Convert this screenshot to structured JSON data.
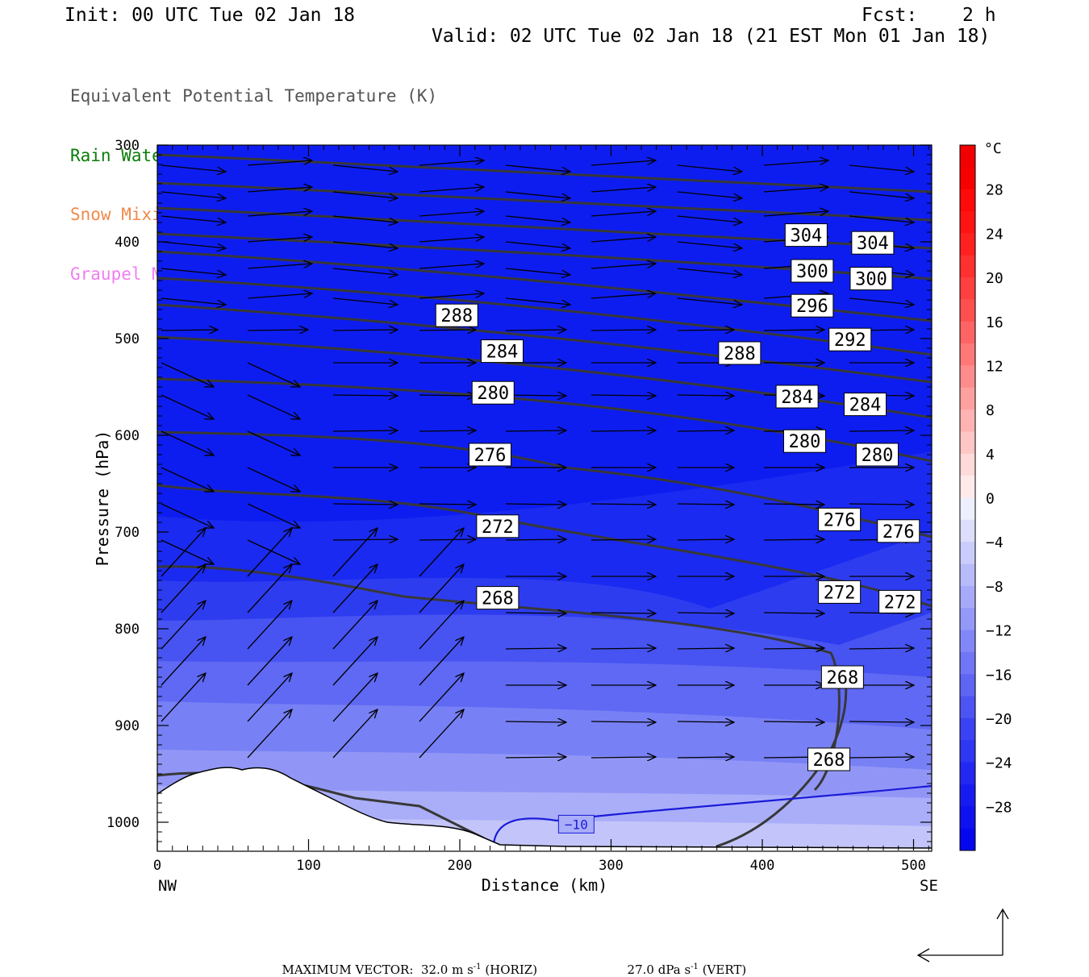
{
  "header": {
    "init": "Init: 00 UTC Tue 02 Jan 18",
    "fcst_label": "Fcst:",
    "fcst_value": "2 h",
    "valid": "Valid: 02 UTC Tue 02 Jan 18 (21 EST Mon 01 Jan 18)"
  },
  "fields": [
    {
      "label": "Equivalent Potential Temperature (K)",
      "color": "#555555"
    },
    {
      "label": "Rain Water Mixing Ratio (g/kg)",
      "color": "#0a7d0a"
    },
    {
      "label": "Snow Mixing Ratio (g/kg)",
      "color": "#f08a4b"
    },
    {
      "label": "Graupel Mixing Ratio (g/kg)",
      "color": "#f07ef0"
    }
  ],
  "chart_data": {
    "type": "cross-section",
    "xlabel": "Distance (km)",
    "ylabel": "Pressure (hPa)",
    "xlim": [
      0,
      512
    ],
    "ylim": [
      1030,
      300
    ],
    "x_ticks": [
      0,
      100,
      200,
      300,
      400,
      500
    ],
    "y_ticks": [
      300,
      400,
      500,
      600,
      700,
      800,
      900,
      1000
    ],
    "x_end_labels": {
      "left": "NW",
      "right": "SE"
    },
    "colorbar": {
      "unit": "°C",
      "ticks": [
        28,
        24,
        20,
        16,
        12,
        8,
        4,
        0,
        -4,
        -8,
        -12,
        -16,
        -20,
        -24,
        -28
      ],
      "tick_labels": [
        "28",
        "24",
        "20",
        "16",
        "12",
        "8",
        "4",
        "0",
        "−4",
        "−8",
        "−12",
        "−16",
        "−20",
        "−24",
        "−28"
      ],
      "min": -32,
      "max": 32,
      "step": 2
    },
    "theta_e_labels": [
      {
        "text": "304",
        "x": 429,
        "p": 393
      },
      {
        "text": "304",
        "x": 473,
        "p": 401
      },
      {
        "text": "300",
        "x": 433,
        "p": 430
      },
      {
        "text": "300",
        "x": 472,
        "p": 438
      },
      {
        "text": "296",
        "x": 433,
        "p": 466
      },
      {
        "text": "292",
        "x": 458,
        "p": 501
      },
      {
        "text": "288",
        "x": 198,
        "p": 476
      },
      {
        "text": "288",
        "x": 385,
        "p": 515
      },
      {
        "text": "284",
        "x": 228,
        "p": 513
      },
      {
        "text": "284",
        "x": 423,
        "p": 560
      },
      {
        "text": "284",
        "x": 468,
        "p": 568
      },
      {
        "text": "280",
        "x": 222,
        "p": 556
      },
      {
        "text": "280",
        "x": 428,
        "p": 606
      },
      {
        "text": "280",
        "x": 476,
        "p": 620
      },
      {
        "text": "276",
        "x": 220,
        "p": 620
      },
      {
        "text": "276",
        "x": 451,
        "p": 687
      },
      {
        "text": "276",
        "x": 490,
        "p": 699
      },
      {
        "text": "272",
        "x": 225,
        "p": 694
      },
      {
        "text": "272",
        "x": 451,
        "p": 762
      },
      {
        "text": "272",
        "x": 491,
        "p": 772
      },
      {
        "text": "268",
        "x": 225,
        "p": 768
      },
      {
        "text": "268",
        "x": 453,
        "p": 850
      },
      {
        "text": "268",
        "x": 444,
        "p": 935
      }
    ],
    "isotherm_label": {
      "text": "−10",
      "x": 277,
      "p": 1002
    },
    "max_vector": {
      "label": "MAXIMUM VECTOR:",
      "horiz_value": "32.0 m s",
      "horiz_exp": "-1",
      "horiz_unit": "(HORIZ)",
      "vert_value": "27.0 dPa s",
      "vert_exp": "-1",
      "vert_unit": "(VERT)"
    }
  }
}
